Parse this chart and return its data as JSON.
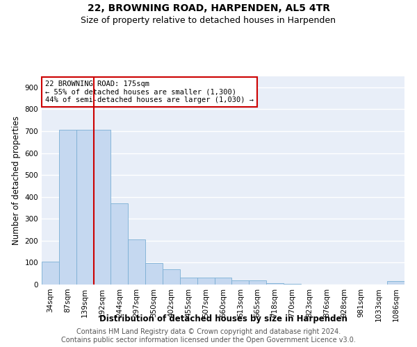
{
  "title1": "22, BROWNING ROAD, HARPENDEN, AL5 4TR",
  "title2": "Size of property relative to detached houses in Harpenden",
  "xlabel": "Distribution of detached houses by size in Harpenden",
  "ylabel": "Number of detached properties",
  "categories": [
    "34sqm",
    "87sqm",
    "139sqm",
    "192sqm",
    "244sqm",
    "297sqm",
    "350sqm",
    "402sqm",
    "455sqm",
    "507sqm",
    "560sqm",
    "613sqm",
    "665sqm",
    "718sqm",
    "770sqm",
    "823sqm",
    "876sqm",
    "928sqm",
    "981sqm",
    "1033sqm",
    "1086sqm"
  ],
  "values": [
    103,
    707,
    707,
    707,
    372,
    207,
    97,
    70,
    33,
    33,
    33,
    20,
    20,
    7,
    3,
    0,
    0,
    0,
    0,
    0,
    15
  ],
  "bar_color": "#c5d8f0",
  "bar_edge_color": "#7bafd4",
  "vline_color": "#cc0000",
  "annotation_text": "22 BROWNING ROAD: 175sqm\n← 55% of detached houses are smaller (1,300)\n44% of semi-detached houses are larger (1,030) →",
  "annotation_box_edgecolor": "#cc0000",
  "ylim": [
    0,
    950
  ],
  "yticks": [
    0,
    100,
    200,
    300,
    400,
    500,
    600,
    700,
    800,
    900
  ],
  "footer1": "Contains HM Land Registry data © Crown copyright and database right 2024.",
  "footer2": "Contains public sector information licensed under the Open Government Licence v3.0.",
  "bg_color": "#e8eef8",
  "grid_color": "#ffffff",
  "title_fontsize": 10,
  "subtitle_fontsize": 9,
  "axis_label_fontsize": 8.5,
  "tick_fontsize": 7.5,
  "annotation_fontsize": 7.5,
  "footer_fontsize": 7
}
